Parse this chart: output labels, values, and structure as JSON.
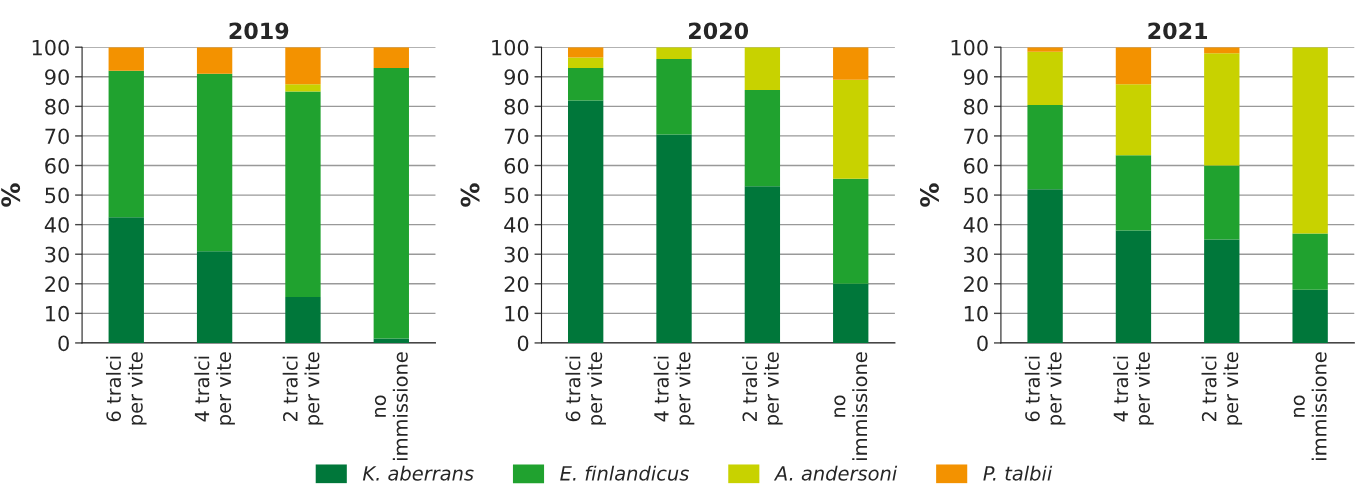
{
  "chart_data": [
    {
      "type": "bar",
      "title": "2019",
      "ylabel": "%",
      "stacked": true,
      "categories": [
        "6 tralci\nper vite",
        "4 tralci\nper vite",
        "2 tralci\nper vite",
        "no\nimmissione"
      ],
      "ylim": [
        0,
        100
      ],
      "yticks": [
        0,
        10,
        20,
        30,
        40,
        50,
        60,
        70,
        80,
        90,
        100
      ],
      "grid": "y",
      "series": [
        {
          "color": "#00773a",
          "values": [
            42.5,
            31,
            15.5,
            1.5
          ]
        },
        {
          "color": "#20a22f",
          "values": [
            49.5,
            60,
            69.5,
            91.5
          ]
        },
        {
          "color": "#c8d200",
          "values": [
            0,
            0,
            2.5,
            0
          ]
        },
        {
          "color": "#f39200",
          "values": [
            8,
            9,
            12.5,
            7
          ]
        }
      ]
    },
    {
      "type": "bar",
      "title": "2020",
      "ylabel": "%",
      "stacked": true,
      "categories": [
        "6 tralci\nper vite",
        "4 tralci\nper vite",
        "2 tralci\nper vite",
        "no\nimmissione"
      ],
      "ylim": [
        0,
        100
      ],
      "yticks": [
        0,
        10,
        20,
        30,
        40,
        50,
        60,
        70,
        80,
        90,
        100
      ],
      "grid": "y",
      "series": [
        {
          "color": "#00773a",
          "values": [
            82,
            70.5,
            53,
            20
          ]
        },
        {
          "color": "#20a22f",
          "values": [
            11,
            25.5,
            32.5,
            35.5
          ]
        },
        {
          "color": "#c8d200",
          "values": [
            3.5,
            4,
            14.5,
            33.5
          ]
        },
        {
          "color": "#f39200",
          "values": [
            3.5,
            0,
            0,
            11
          ]
        }
      ]
    },
    {
      "type": "bar",
      "title": "2021",
      "ylabel": "%",
      "stacked": true,
      "categories": [
        "6 tralci\nper vite",
        "4 tralci\nper vite",
        "2 tralci\nper vite",
        "no\nimmissione"
      ],
      "ylim": [
        0,
        100
      ],
      "yticks": [
        0,
        10,
        20,
        30,
        40,
        50,
        60,
        70,
        80,
        90,
        100
      ],
      "grid": "y",
      "legend": "bottom",
      "series": [
        {
          "name": "K. aberrans",
          "color": "#00773a",
          "values": [
            52,
            38,
            35,
            18
          ]
        },
        {
          "name": "E. finlandicus",
          "color": "#20a22f",
          "values": [
            28.5,
            25.5,
            25,
            19
          ]
        },
        {
          "name": "A. andersoni",
          "color": "#c8d200",
          "values": [
            18,
            24,
            38,
            63
          ]
        },
        {
          "name": "P. talbii",
          "color": "#f39200",
          "values": [
            1.5,
            12.5,
            2,
            0
          ]
        }
      ]
    }
  ]
}
